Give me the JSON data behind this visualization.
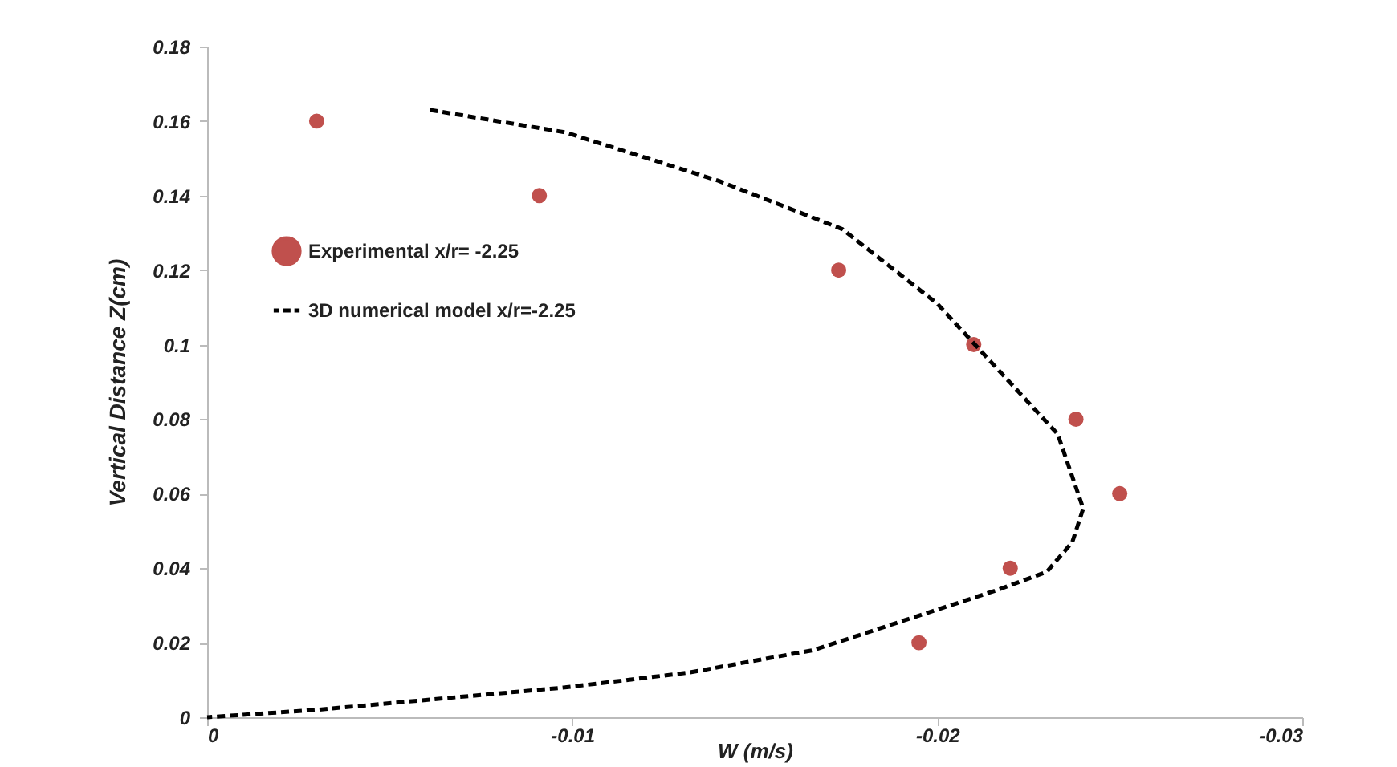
{
  "chart_data": {
    "type": "scatter",
    "xlabel": "W (m/s)",
    "ylabel": "Vertical Distance  Z(cm)",
    "xlim": [
      0,
      -0.03
    ],
    "xticks": [
      0,
      -0.01,
      -0.02,
      -0.03
    ],
    "ylim": [
      0,
      0.18
    ],
    "yticks": [
      0,
      0.02,
      0.04,
      0.06,
      0.08,
      0.1,
      0.12,
      0.14,
      0.16,
      0.18
    ],
    "grid": false,
    "legend": "top left",
    "series": [
      {
        "name": "Experimental x/r= -2.25",
        "marker": "circle",
        "color": "#c0504d",
        "x": [
          -0.003,
          -0.0091,
          -0.0173,
          -0.021,
          -0.0238,
          -0.025,
          -0.022,
          -0.0195
        ],
        "values": [
          0.16,
          0.14,
          0.12,
          0.1,
          0.08,
          0.06,
          0.04,
          0.02
        ]
      },
      {
        "name": "3D numerical model x/r=-2.25",
        "type": "line",
        "line_style": "dashed",
        "color": "#000000",
        "x": [
          -0.0061,
          -0.0098,
          -0.014,
          -0.0174,
          -0.02,
          -0.0216,
          -0.0233,
          -0.024,
          -0.0237,
          -0.023,
          -0.0216,
          -0.0191,
          -0.0166,
          -0.0132,
          -0.0098,
          -0.0064,
          -0.003,
          0
        ],
        "values": [
          0.163,
          0.157,
          0.144,
          0.131,
          0.111,
          0.094,
          0.076,
          0.056,
          0.047,
          0.039,
          0.034,
          0.026,
          0.018,
          0.012,
          0.008,
          0.005,
          0.002,
          0
        ]
      }
    ]
  }
}
